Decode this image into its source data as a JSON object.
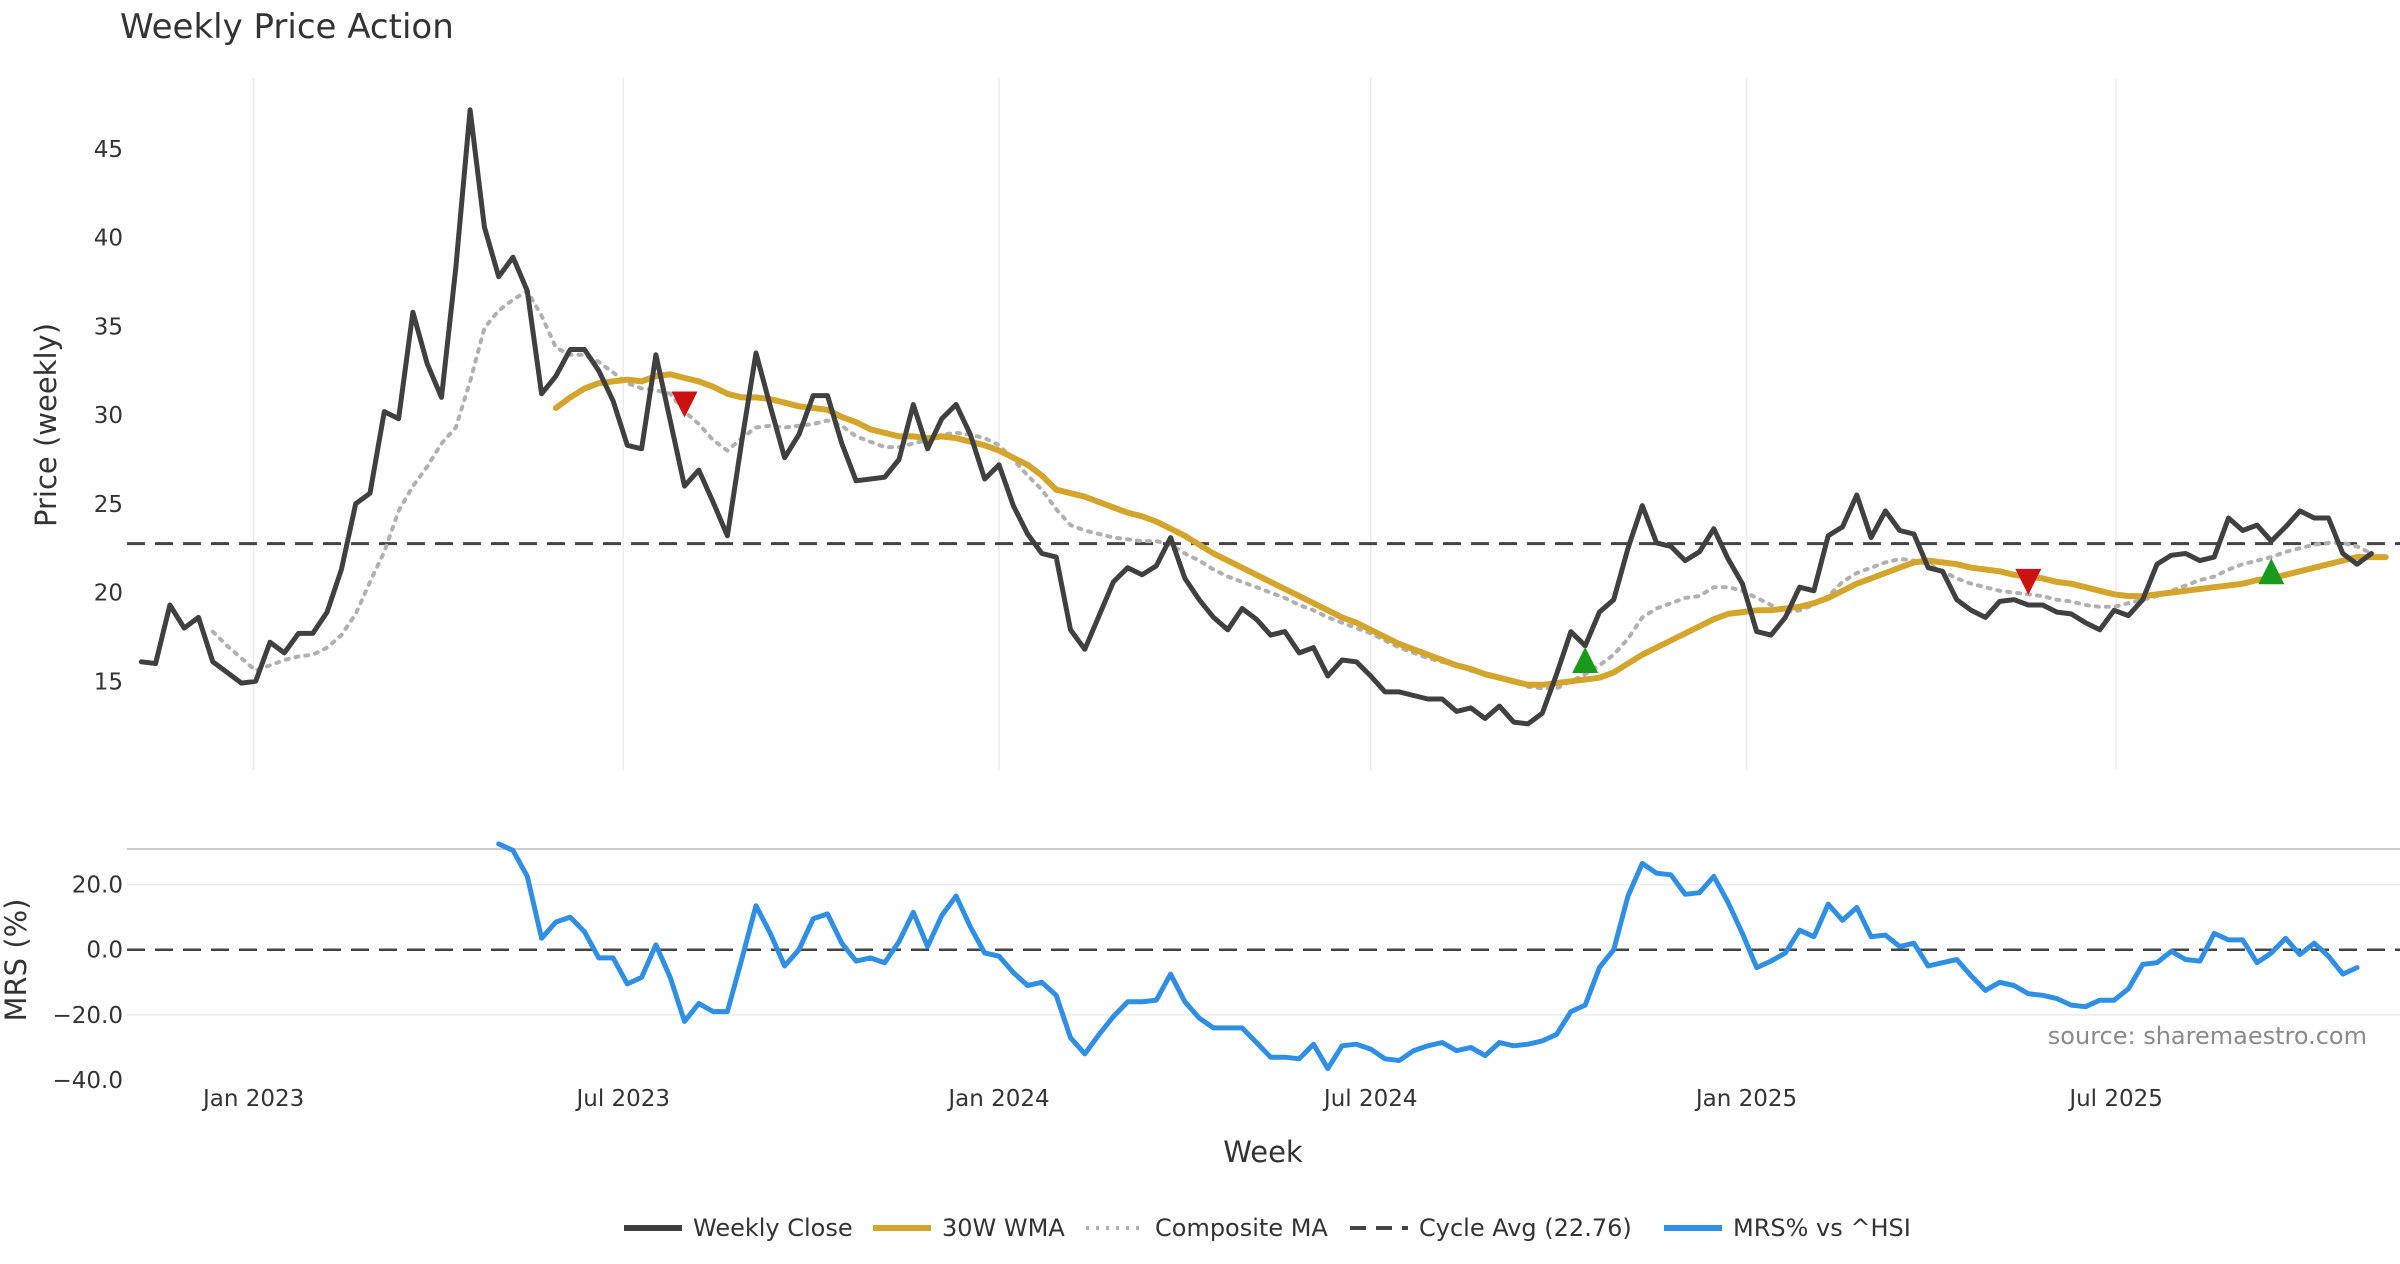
{
  "chart_data": [
    {
      "type": "line",
      "title": "Weekly Price Action",
      "ylabel": "Price (weekly)",
      "xlabel": "Week",
      "x_start": "2022-11-07",
      "x_step_days": 7,
      "x_ticks": [
        {
          "date": "2023-01-01",
          "label": "Jan 2023"
        },
        {
          "date": "2023-07-01",
          "label": "Jul 2023"
        },
        {
          "date": "2024-01-01",
          "label": "Jan 2024"
        },
        {
          "date": "2024-07-01",
          "label": "Jul 2024"
        },
        {
          "date": "2025-01-01",
          "label": "Jan 2025"
        },
        {
          "date": "2025-07-01",
          "label": "Jul 2025"
        }
      ],
      "ylim": [
        10,
        49
      ],
      "y_ticks": [
        15,
        20,
        25,
        30,
        35,
        40,
        45
      ],
      "grid": "vertical",
      "series": [
        {
          "name": "Weekly Close",
          "color": "#404040",
          "style": "solid",
          "values": [
            16.1,
            16.0,
            19.3,
            18.0,
            18.6,
            16.1,
            15.5,
            14.9,
            15.0,
            17.2,
            16.6,
            17.7,
            17.7,
            18.9,
            21.3,
            25.0,
            25.6,
            30.2,
            29.8,
            35.8,
            32.9,
            31.0,
            38.3,
            47.2,
            40.6,
            37.8,
            38.9,
            37.0,
            31.2,
            32.2,
            33.7,
            33.7,
            32.5,
            30.8,
            28.3,
            28.1,
            33.4,
            29.7,
            26.0,
            26.9,
            25.1,
            23.2,
            28.5,
            33.5,
            30.5,
            27.6,
            28.9,
            31.1,
            31.1,
            28.4,
            26.3,
            26.4,
            26.5,
            27.5,
            30.6,
            28.1,
            29.8,
            30.6,
            28.9,
            26.4,
            27.2,
            24.9,
            23.3,
            22.2,
            22.0,
            17.9,
            16.8,
            18.7,
            20.6,
            21.4,
            21.0,
            21.5,
            23.1,
            20.8,
            19.6,
            18.6,
            17.9,
            19.1,
            18.5,
            17.6,
            17.8,
            16.6,
            16.9,
            15.3,
            16.2,
            16.1,
            15.3,
            14.4,
            14.4,
            14.2,
            14.0,
            14.0,
            13.3,
            13.5,
            12.9,
            13.6,
            12.7,
            12.6,
            13.2,
            15.4,
            17.8,
            17.0,
            18.9,
            19.6,
            22.5,
            24.9,
            22.8,
            22.6,
            21.8,
            22.3,
            23.6,
            21.9,
            20.5,
            17.8,
            17.6,
            18.6,
            20.3,
            20.1,
            23.2,
            23.7,
            25.5,
            23.1,
            24.6,
            23.5,
            23.3,
            21.4,
            21.2,
            19.6,
            19.0,
            18.6,
            19.5,
            19.6,
            19.3,
            19.3,
            18.9,
            18.8,
            18.3,
            17.9,
            19.0,
            18.7,
            19.6,
            21.6,
            22.1,
            22.2,
            21.8,
            22.0,
            24.2,
            23.5,
            23.8,
            22.9,
            23.7,
            24.6,
            24.2,
            24.2,
            22.2,
            21.6,
            22.2
          ]
        },
        {
          "name": "30W WMA",
          "color": "#d4a52c",
          "style": "solid",
          "values": [
            null,
            null,
            null,
            null,
            null,
            null,
            null,
            null,
            null,
            null,
            null,
            null,
            null,
            null,
            null,
            null,
            null,
            null,
            null,
            null,
            null,
            null,
            null,
            null,
            null,
            null,
            null,
            null,
            null,
            30.4,
            31.0,
            31.5,
            31.8,
            31.9,
            32.0,
            31.9,
            32.2,
            32.3,
            32.1,
            31.9,
            31.6,
            31.2,
            31.0,
            31.0,
            30.9,
            30.7,
            30.5,
            30.4,
            30.3,
            29.9,
            29.6,
            29.2,
            29.0,
            28.8,
            28.8,
            28.7,
            28.8,
            28.7,
            28.5,
            28.3,
            28.0,
            27.6,
            27.2,
            26.6,
            25.8,
            25.6,
            25.4,
            25.1,
            24.8,
            24.5,
            24.3,
            24.0,
            23.6,
            23.2,
            22.7,
            22.2,
            21.8,
            21.4,
            21.0,
            20.6,
            20.2,
            19.8,
            19.4,
            19.0,
            18.6,
            18.3,
            17.9,
            17.5,
            17.1,
            16.8,
            16.5,
            16.2,
            15.9,
            15.7,
            15.4,
            15.2,
            15.0,
            14.8,
            14.8,
            14.9,
            15.0,
            15.1,
            15.2,
            15.5,
            16.0,
            16.5,
            16.9,
            17.3,
            17.7,
            18.1,
            18.5,
            18.8,
            18.9,
            19.0,
            19.0,
            19.1,
            19.2,
            19.4,
            19.7,
            20.1,
            20.5,
            20.8,
            21.1,
            21.4,
            21.7,
            21.8,
            21.7,
            21.6,
            21.4,
            21.3,
            21.2,
            21.0,
            20.9,
            20.8,
            20.6,
            20.5,
            20.3,
            20.1,
            19.9,
            19.8,
            19.8,
            19.9,
            20.0,
            20.1,
            20.2,
            20.3,
            20.4,
            20.5,
            20.7,
            20.8,
            21.0,
            21.2,
            21.4,
            21.6,
            21.8,
            22.0,
            22.0,
            22.0
          ]
        },
        {
          "name": "Composite MA",
          "color": "#b0b0b0",
          "style": "dotted",
          "values": [
            null,
            null,
            null,
            null,
            null,
            17.8,
            17.0,
            16.3,
            15.6,
            15.9,
            16.2,
            16.4,
            16.5,
            16.9,
            17.6,
            18.8,
            20.6,
            22.3,
            24.6,
            26.0,
            27.1,
            28.4,
            29.3,
            31.9,
            34.9,
            35.9,
            36.5,
            37.0,
            35.6,
            33.8,
            33.4,
            33.4,
            33.0,
            32.4,
            31.8,
            31.5,
            31.4,
            31.2,
            30.2,
            29.5,
            28.6,
            28.0,
            28.7,
            29.3,
            29.4,
            29.3,
            29.4,
            29.5,
            29.7,
            29.4,
            28.8,
            28.5,
            28.2,
            28.2,
            28.4,
            28.6,
            28.9,
            29.0,
            28.9,
            28.7,
            28.3,
            27.5,
            26.6,
            25.8,
            24.7,
            23.8,
            23.5,
            23.3,
            23.1,
            23.0,
            22.9,
            22.9,
            22.7,
            22.2,
            21.8,
            21.3,
            20.9,
            20.6,
            20.3,
            20.0,
            19.7,
            19.3,
            19.0,
            18.6,
            18.3,
            18.0,
            17.7,
            17.3,
            16.9,
            16.6,
            16.3,
            16.1,
            15.9,
            15.6,
            15.4,
            15.2,
            15.0,
            14.7,
            14.6,
            14.6,
            15.0,
            15.4,
            15.9,
            16.5,
            17.4,
            18.6,
            19.1,
            19.4,
            19.7,
            19.8,
            20.3,
            20.3,
            20.1,
            19.7,
            19.3,
            18.9,
            19.0,
            19.3,
            19.8,
            20.6,
            21.1,
            21.4,
            21.7,
            21.9,
            21.8,
            21.6,
            21.2,
            20.8,
            20.5,
            20.3,
            20.1,
            20.0,
            19.9,
            19.8,
            19.6,
            19.5,
            19.3,
            19.2,
            19.2,
            19.4,
            19.6,
            19.8,
            20.1,
            20.4,
            20.7,
            20.9,
            21.3,
            21.6,
            21.8,
            22.0,
            22.3,
            22.5,
            22.7,
            22.8,
            22.8,
            22.6,
            22.2
          ]
        }
      ],
      "reference_line": {
        "name": "Cycle Avg (22.76)",
        "value": 22.76,
        "color": "#444444",
        "style": "dashed"
      },
      "markers": [
        {
          "type": "sell",
          "week_index": 38,
          "value": 30.6,
          "color": "#cc1111"
        },
        {
          "type": "buy",
          "week_index": 101,
          "value": 16.2,
          "color": "#1a9a1a"
        },
        {
          "type": "sell",
          "week_index": 132,
          "value": 20.6,
          "color": "#cc1111"
        },
        {
          "type": "buy",
          "week_index": 149,
          "value": 21.2,
          "color": "#1a9a1a"
        }
      ]
    },
    {
      "type": "line",
      "ylabel": "MRS (%)",
      "ylim": [
        -40,
        30
      ],
      "y_ticks": [
        {
          "value": 20,
          "label": "20.0"
        },
        {
          "value": 0,
          "label": "0.0"
        },
        {
          "value": -20,
          "label": "−20.0"
        },
        {
          "value": -40,
          "label": "−40.0"
        }
      ],
      "reference_line": {
        "value": 0,
        "color": "#444444",
        "style": "dashed"
      },
      "series": [
        {
          "name": "MRS% vs ^HSI",
          "color": "#2f8fe4",
          "style": "solid",
          "values": [
            null,
            null,
            null,
            null,
            null,
            null,
            null,
            null,
            null,
            null,
            null,
            null,
            null,
            null,
            null,
            null,
            null,
            null,
            null,
            null,
            null,
            null,
            null,
            null,
            null,
            32.5,
            30.5,
            22.5,
            3.5,
            8.5,
            10,
            5.5,
            -2.5,
            -2.5,
            -10.5,
            -8.5,
            1.5,
            -8.5,
            -22,
            -16.5,
            -19,
            -19,
            -3,
            13.5,
            5,
            -5,
            0,
            9.5,
            11,
            2,
            -3.5,
            -2.5,
            -4,
            2.5,
            11.5,
            1,
            10.5,
            16.5,
            7,
            -1,
            -2,
            -7,
            -11,
            -10,
            -14,
            -27,
            -32,
            -26,
            -20.5,
            -16,
            -16,
            -15.5,
            -7.5,
            -16,
            -21,
            -24,
            -24,
            -24,
            -28.5,
            -33,
            -33,
            -33.5,
            -29,
            -36.5,
            -29.5,
            -29,
            -30.5,
            -33.5,
            -34,
            -31,
            -29.5,
            -28.5,
            -31,
            -30,
            -32.5,
            -28.5,
            -29.5,
            -29,
            -28,
            -26,
            -19,
            -17,
            -5.5,
            0,
            16.5,
            26.5,
            23.5,
            23,
            17,
            17.5,
            22.5,
            14.5,
            5,
            -5.5,
            -3.5,
            -1,
            6,
            4,
            14,
            9,
            13,
            4,
            4.5,
            1,
            2,
            -5,
            -4,
            -3,
            -8,
            -12.5,
            -10,
            -11,
            -13.5,
            -14,
            -15,
            -17,
            -17.5,
            -15.5,
            -15.5,
            -12,
            -4.5,
            -4,
            -0.5,
            -3,
            -3.5,
            5,
            3,
            3,
            -4,
            -1,
            3.5,
            -1.5,
            2,
            -2,
            -7.5,
            -5.5
          ]
        }
      ]
    }
  ],
  "source_note": "source: sharemaestro.com",
  "legend": [
    {
      "label": "Weekly Close",
      "color": "#404040",
      "style": "solid"
    },
    {
      "label": "30W WMA",
      "color": "#d4a52c",
      "style": "solid"
    },
    {
      "label": "Composite MA",
      "color": "#b0b0b0",
      "style": "dotted"
    },
    {
      "label": "Cycle Avg (22.76)",
      "color": "#444444",
      "style": "dashed"
    },
    {
      "label": "MRS% vs ^HSI",
      "color": "#2f8fe4",
      "style": "solid"
    }
  ]
}
